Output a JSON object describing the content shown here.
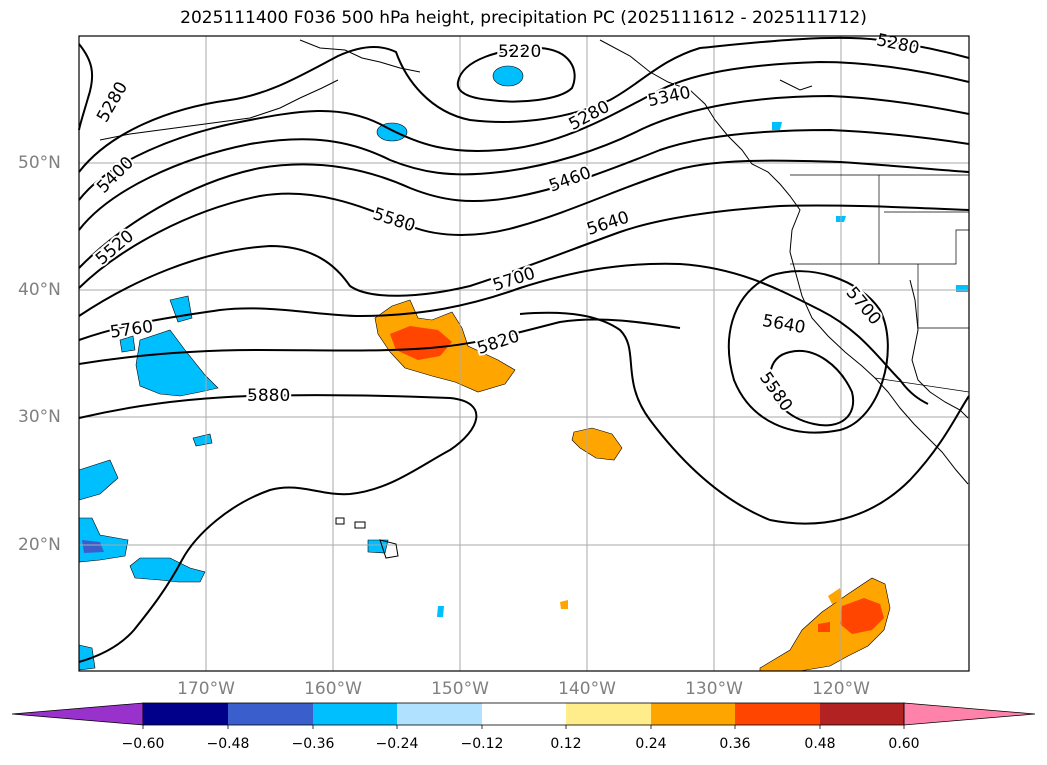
{
  "title": "2025111400 F036 500 hPa height, precipitation PC (2025111612 - 2025111712)",
  "lat_labels": [
    "50°N",
    "40°N",
    "30°N",
    "20°N"
  ],
  "lon_labels": [
    "170°W",
    "160°W",
    "150°W",
    "140°W",
    "130°W",
    "120°W"
  ],
  "contour_labels": [
    "5220",
    "5280",
    "5280",
    "5280",
    "5340",
    "5400",
    "5460",
    "5520",
    "5580",
    "5640",
    "5700",
    "5760",
    "5820",
    "5880",
    "5640",
    "5700",
    "5580"
  ],
  "colorbar": {
    "ticks": [
      "−0.60",
      "−0.48",
      "−0.36",
      "−0.24",
      "−0.12",
      "0.12",
      "0.24",
      "0.36",
      "0.48",
      "0.60"
    ],
    "colors": [
      "#9932cc",
      "#00008b",
      "#3a5fcd",
      "#00bfff",
      "#b0e2ff",
      "#ffffff",
      "#ffec8b",
      "#ffa500",
      "#ff4500",
      "#b22222",
      "#ff82ab"
    ]
  },
  "colors": {
    "outline": "#000000",
    "grid": "#aaaaaa",
    "label": "#808080"
  }
}
